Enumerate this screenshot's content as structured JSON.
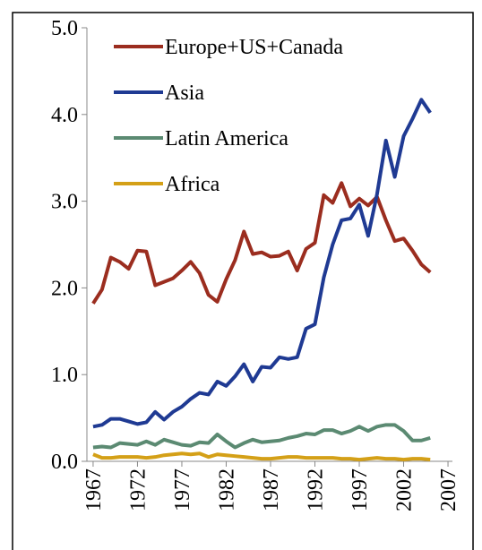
{
  "chart_data": {
    "type": "line",
    "x": [
      1967,
      1968,
      1969,
      1970,
      1971,
      1972,
      1973,
      1974,
      1975,
      1976,
      1977,
      1978,
      1979,
      1980,
      1981,
      1982,
      1983,
      1984,
      1985,
      1986,
      1987,
      1988,
      1989,
      1990,
      1991,
      1992,
      1993,
      1994,
      1995,
      1996,
      1997,
      1998,
      1999,
      2000,
      2001,
      2002,
      2003,
      2004,
      2005
    ],
    "series": [
      {
        "name": "Europe+US+Canada",
        "color": "#9b2d1f",
        "values": [
          1.82,
          1.98,
          2.35,
          2.3,
          2.22,
          2.43,
          2.42,
          2.03,
          2.07,
          2.11,
          2.2,
          2.3,
          2.17,
          1.92,
          1.84,
          2.1,
          2.32,
          2.65,
          2.39,
          2.41,
          2.36,
          2.37,
          2.42,
          2.2,
          2.45,
          2.52,
          3.07,
          2.98,
          3.21,
          2.94,
          3.03,
          2.95,
          3.05,
          2.78,
          2.54,
          2.57,
          2.43,
          2.27,
          2.18
        ]
      },
      {
        "name": "Asia",
        "color": "#1f3a93",
        "values": [
          0.4,
          0.42,
          0.49,
          0.49,
          0.46,
          0.43,
          0.45,
          0.57,
          0.48,
          0.57,
          0.63,
          0.72,
          0.79,
          0.77,
          0.92,
          0.87,
          0.98,
          1.12,
          0.92,
          1.09,
          1.08,
          1.2,
          1.18,
          1.2,
          1.53,
          1.58,
          2.12,
          2.5,
          2.78,
          2.8,
          2.96,
          2.6,
          3.08,
          3.7,
          3.28,
          3.75,
          3.95,
          4.17,
          4.02
        ]
      },
      {
        "name": "Latin America",
        "color": "#5b8a72",
        "values": [
          0.16,
          0.17,
          0.16,
          0.21,
          0.2,
          0.19,
          0.23,
          0.19,
          0.25,
          0.22,
          0.19,
          0.18,
          0.22,
          0.21,
          0.31,
          0.23,
          0.16,
          0.21,
          0.25,
          0.22,
          0.23,
          0.24,
          0.27,
          0.29,
          0.32,
          0.31,
          0.36,
          0.36,
          0.32,
          0.35,
          0.4,
          0.35,
          0.4,
          0.42,
          0.42,
          0.35,
          0.24,
          0.24,
          0.27
        ]
      },
      {
        "name": "Africa",
        "color": "#d4a017",
        "values": [
          0.08,
          0.04,
          0.04,
          0.05,
          0.05,
          0.05,
          0.04,
          0.05,
          0.07,
          0.08,
          0.09,
          0.08,
          0.09,
          0.05,
          0.08,
          0.07,
          0.06,
          0.05,
          0.04,
          0.03,
          0.03,
          0.04,
          0.05,
          0.05,
          0.04,
          0.04,
          0.04,
          0.04,
          0.03,
          0.03,
          0.02,
          0.03,
          0.04,
          0.03,
          0.03,
          0.02,
          0.03,
          0.03,
          0.02
        ]
      }
    ],
    "xlim": [
      1966.3,
      2007.5
    ],
    "xticks": [
      1967,
      1972,
      1977,
      1982,
      1987,
      1992,
      1997,
      2002,
      2007
    ],
    "ylim": [
      0,
      5
    ],
    "yticks": [
      {
        "value": 0,
        "label": "0.0"
      },
      {
        "value": 1,
        "label": "1.0"
      },
      {
        "value": 2,
        "label": "2.0"
      },
      {
        "value": 3,
        "label": "3.0"
      },
      {
        "value": 4,
        "label": "4.0"
      },
      {
        "value": 5,
        "label": "5.0"
      }
    ],
    "legend": "upper left"
  }
}
